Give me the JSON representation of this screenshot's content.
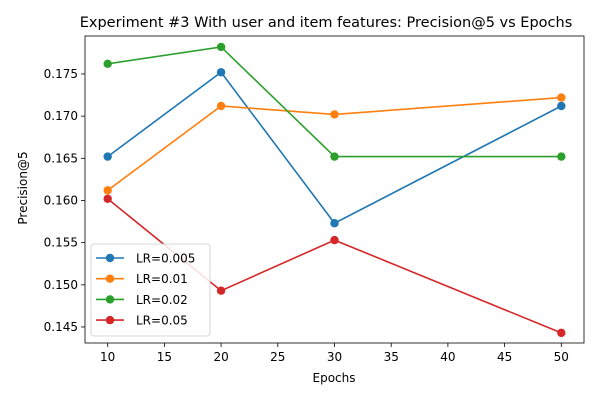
{
  "chart_data": {
    "type": "line",
    "title": "Experiment #3 With user and item features: Precision@5 vs Epochs",
    "xlabel": "Epochs",
    "ylabel": "Precision@5",
    "x": [
      10,
      20,
      30,
      50
    ],
    "xlim": [
      8,
      52
    ],
    "ylim": [
      0.1431,
      0.1795
    ],
    "xticks": [
      10,
      15,
      20,
      25,
      30,
      35,
      40,
      45,
      50
    ],
    "yticks": [
      0.145,
      0.15,
      0.155,
      0.16,
      0.165,
      0.17,
      0.175
    ],
    "ytick_labels": [
      "0.145",
      "0.150",
      "0.155",
      "0.160",
      "0.165",
      "0.170",
      "0.175"
    ],
    "grid": false,
    "legend_position": "lower-left",
    "series": [
      {
        "name": "LR=0.005",
        "color": "#1f77b4",
        "values": [
          0.1652,
          0.1752,
          0.1573,
          0.1712
        ]
      },
      {
        "name": "LR=0.01",
        "color": "#ff7f0e",
        "values": [
          0.1612,
          0.1712,
          0.1702,
          0.1722
        ]
      },
      {
        "name": "LR=0.02",
        "color": "#2ca02c",
        "values": [
          0.1762,
          0.1782,
          0.1652,
          0.1652
        ]
      },
      {
        "name": "LR=0.05",
        "color": "#d62728",
        "values": [
          0.1602,
          0.1493,
          0.1553,
          0.1443
        ]
      }
    ]
  }
}
